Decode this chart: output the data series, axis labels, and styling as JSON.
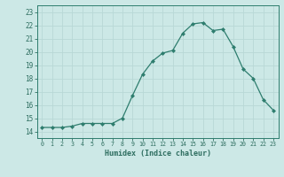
{
  "x": [
    0,
    1,
    2,
    3,
    4,
    5,
    6,
    7,
    8,
    9,
    10,
    11,
    12,
    13,
    14,
    15,
    16,
    17,
    18,
    19,
    20,
    21,
    22,
    23
  ],
  "y": [
    14.3,
    14.3,
    14.3,
    14.4,
    14.6,
    14.6,
    14.6,
    14.6,
    15.0,
    16.7,
    18.3,
    19.3,
    19.9,
    20.1,
    21.4,
    22.1,
    22.2,
    21.6,
    21.7,
    20.4,
    18.7,
    18.0,
    16.4,
    15.6
  ],
  "xlabel": "Humidex (Indice chaleur)",
  "xlim": [
    -0.5,
    23.5
  ],
  "ylim": [
    13.5,
    23.5
  ],
  "yticks": [
    14,
    15,
    16,
    17,
    18,
    19,
    20,
    21,
    22,
    23
  ],
  "xticks": [
    0,
    1,
    2,
    3,
    4,
    5,
    6,
    7,
    8,
    9,
    10,
    11,
    12,
    13,
    14,
    15,
    16,
    17,
    18,
    19,
    20,
    21,
    22,
    23
  ],
  "line_color": "#2e7d6e",
  "marker_color": "#2e7d6e",
  "bg_color": "#cce8e6",
  "grid_color": "#b8d8d6",
  "tick_color": "#2e6e60"
}
